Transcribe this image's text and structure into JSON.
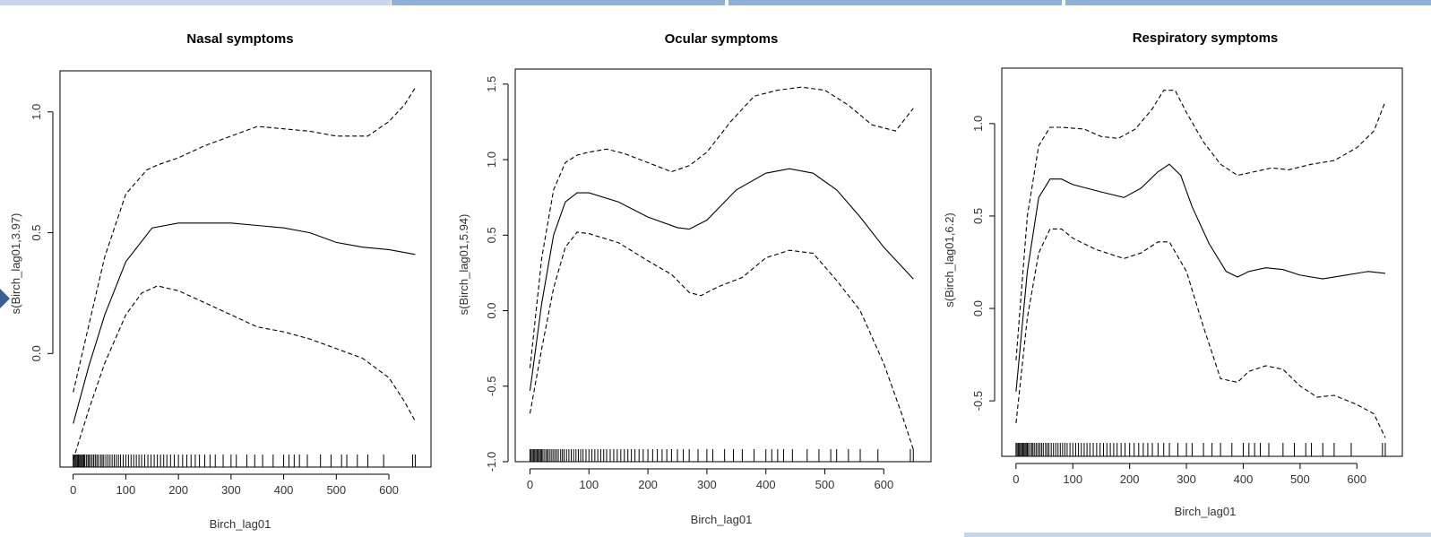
{
  "colors": {
    "slide_accent": "#8fb0db",
    "slide_accent_light": "#c7d6ec",
    "arrow": "#3a5f96",
    "line": "#000000"
  },
  "chart_data": [
    {
      "type": "line",
      "title": "Nasal symptoms",
      "xlabel": "Birch_lag01",
      "ylabel": "s(Birch_lag01,3.97)",
      "xlim": [
        -25,
        680
      ],
      "ylim": [
        -0.47,
        1.17
      ],
      "xticks": [
        0,
        100,
        200,
        300,
        400,
        500,
        600
      ],
      "yticks": [
        0.0,
        0.5,
        1.0
      ],
      "ytick_labels": [
        "0.0",
        "0.5",
        "1.0"
      ],
      "grid": false,
      "series": [
        {
          "role": "estimate",
          "style": "solid",
          "x": [
            0,
            30,
            60,
            100,
            150,
            200,
            250,
            300,
            350,
            400,
            450,
            500,
            550,
            600,
            650
          ],
          "y": [
            -0.29,
            -0.05,
            0.16,
            0.38,
            0.52,
            0.54,
            0.54,
            0.54,
            0.53,
            0.52,
            0.5,
            0.46,
            0.44,
            0.43,
            0.41
          ]
        },
        {
          "role": "upper",
          "style": "dashed",
          "x": [
            0,
            30,
            60,
            100,
            140,
            160,
            200,
            250,
            300,
            350,
            400,
            450,
            500,
            560,
            600,
            630,
            650
          ],
          "y": [
            -0.16,
            0.12,
            0.4,
            0.66,
            0.76,
            0.78,
            0.81,
            0.86,
            0.9,
            0.94,
            0.93,
            0.92,
            0.9,
            0.9,
            0.96,
            1.03,
            1.1
          ]
        },
        {
          "role": "lower",
          "style": "dashed",
          "x": [
            0,
            30,
            60,
            100,
            130,
            160,
            200,
            250,
            300,
            350,
            400,
            450,
            500,
            550,
            600,
            630,
            650
          ],
          "y": [
            -0.44,
            -0.23,
            -0.04,
            0.16,
            0.25,
            0.28,
            0.26,
            0.21,
            0.16,
            0.11,
            0.09,
            0.06,
            0.02,
            -0.02,
            -0.1,
            -0.2,
            -0.28
          ]
        }
      ],
      "rug": [
        0,
        2,
        4,
        6,
        8,
        10,
        12,
        14,
        16,
        18,
        20,
        22,
        25,
        28,
        30,
        33,
        36,
        39,
        42,
        45,
        48,
        52,
        55,
        58,
        62,
        66,
        70,
        74,
        78,
        82,
        86,
        90,
        95,
        100,
        105,
        110,
        115,
        120,
        125,
        130,
        136,
        142,
        148,
        154,
        160,
        166,
        172,
        178,
        185,
        192,
        200,
        208,
        216,
        224,
        232,
        240,
        250,
        260,
        270,
        285,
        300,
        310,
        330,
        345,
        360,
        380,
        400,
        410,
        420,
        430,
        445,
        470,
        490,
        510,
        520,
        540,
        560,
        590,
        645,
        650
      ]
    },
    {
      "type": "line",
      "title": "Ocular symptoms",
      "xlabel": "Birch_lag01",
      "ylabel": "s(Birch_lag01,5.94)",
      "xlim": [
        -25,
        680
      ],
      "ylim": [
        -1.0,
        1.6
      ],
      "xticks": [
        0,
        100,
        200,
        300,
        400,
        500,
        600
      ],
      "yticks": [
        -1.0,
        -0.5,
        0.0,
        0.5,
        1.0,
        1.5
      ],
      "ytick_labels": [
        "-1.0",
        "-0.5",
        "0.0",
        "0.5",
        "1.0",
        "1.5"
      ],
      "grid": false,
      "series": [
        {
          "role": "estimate",
          "style": "solid",
          "x": [
            0,
            20,
            40,
            60,
            80,
            100,
            150,
            200,
            250,
            270,
            300,
            350,
            400,
            440,
            480,
            520,
            560,
            600,
            650
          ],
          "y": [
            -0.53,
            0.05,
            0.5,
            0.72,
            0.78,
            0.78,
            0.72,
            0.62,
            0.55,
            0.54,
            0.6,
            0.8,
            0.91,
            0.94,
            0.91,
            0.8,
            0.62,
            0.42,
            0.21
          ]
        },
        {
          "role": "upper",
          "style": "dashed",
          "x": [
            0,
            20,
            40,
            60,
            80,
            100,
            130,
            160,
            200,
            240,
            270,
            300,
            340,
            380,
            420,
            460,
            500,
            540,
            580,
            620,
            650
          ],
          "y": [
            -0.38,
            0.35,
            0.8,
            0.98,
            1.03,
            1.05,
            1.07,
            1.04,
            0.98,
            0.92,
            0.96,
            1.05,
            1.25,
            1.42,
            1.46,
            1.48,
            1.46,
            1.36,
            1.23,
            1.19,
            1.34
          ]
        },
        {
          "role": "lower",
          "style": "dashed",
          "x": [
            0,
            20,
            40,
            60,
            80,
            100,
            150,
            200,
            240,
            270,
            290,
            320,
            360,
            400,
            440,
            480,
            520,
            560,
            600,
            630,
            650
          ],
          "y": [
            -0.68,
            -0.25,
            0.15,
            0.42,
            0.52,
            0.51,
            0.45,
            0.33,
            0.24,
            0.12,
            0.1,
            0.16,
            0.22,
            0.35,
            0.4,
            0.38,
            0.2,
            0.0,
            -0.35,
            -0.68,
            -0.92
          ]
        }
      ],
      "rug": [
        0,
        2,
        4,
        6,
        8,
        10,
        12,
        14,
        16,
        18,
        20,
        22,
        25,
        28,
        30,
        33,
        36,
        39,
        42,
        45,
        48,
        52,
        55,
        58,
        62,
        66,
        70,
        74,
        78,
        82,
        86,
        90,
        95,
        100,
        105,
        110,
        115,
        120,
        125,
        130,
        136,
        142,
        148,
        154,
        160,
        166,
        172,
        178,
        185,
        192,
        200,
        208,
        216,
        224,
        232,
        240,
        250,
        260,
        270,
        285,
        300,
        310,
        330,
        345,
        360,
        380,
        400,
        410,
        420,
        430,
        445,
        470,
        490,
        510,
        520,
        540,
        560,
        590,
        645,
        650
      ]
    },
    {
      "type": "line",
      "title": "Respiratory symptoms",
      "xlabel": "Birch_lag01",
      "ylabel": "s(Birch_lag01,6.2)",
      "xlim": [
        -25,
        680
      ],
      "ylim": [
        -0.8,
        1.3
      ],
      "xticks": [
        0,
        100,
        200,
        300,
        400,
        500,
        600
      ],
      "yticks": [
        -0.5,
        0.0,
        0.5,
        1.0
      ],
      "ytick_labels": [
        "-0.5",
        "0.0",
        "0.5",
        "1.0"
      ],
      "grid": false,
      "series": [
        {
          "role": "estimate",
          "style": "solid",
          "x": [
            0,
            20,
            40,
            60,
            80,
            100,
            150,
            190,
            220,
            250,
            270,
            290,
            310,
            340,
            370,
            390,
            410,
            440,
            470,
            500,
            540,
            580,
            620,
            650
          ],
          "y": [
            -0.45,
            0.2,
            0.6,
            0.7,
            0.7,
            0.67,
            0.63,
            0.6,
            0.65,
            0.74,
            0.78,
            0.72,
            0.55,
            0.35,
            0.2,
            0.17,
            0.2,
            0.22,
            0.21,
            0.18,
            0.16,
            0.18,
            0.2,
            0.19
          ]
        },
        {
          "role": "upper",
          "style": "dashed",
          "x": [
            0,
            20,
            40,
            60,
            80,
            120,
            150,
            180,
            210,
            240,
            260,
            280,
            300,
            330,
            360,
            390,
            420,
            450,
            480,
            520,
            560,
            600,
            630,
            650
          ],
          "y": [
            -0.28,
            0.5,
            0.88,
            0.98,
            0.98,
            0.97,
            0.93,
            0.92,
            0.97,
            1.08,
            1.18,
            1.18,
            1.06,
            0.9,
            0.78,
            0.72,
            0.74,
            0.76,
            0.75,
            0.78,
            0.8,
            0.87,
            0.96,
            1.12
          ]
        },
        {
          "role": "lower",
          "style": "dashed",
          "x": [
            0,
            20,
            40,
            60,
            80,
            100,
            140,
            190,
            220,
            250,
            270,
            300,
            330,
            360,
            390,
            410,
            440,
            470,
            500,
            530,
            560,
            600,
            630,
            650
          ],
          "y": [
            -0.62,
            -0.05,
            0.3,
            0.43,
            0.43,
            0.38,
            0.32,
            0.27,
            0.3,
            0.36,
            0.36,
            0.2,
            -0.1,
            -0.38,
            -0.4,
            -0.34,
            -0.31,
            -0.33,
            -0.42,
            -0.48,
            -0.47,
            -0.52,
            -0.57,
            -0.7
          ]
        }
      ],
      "rug": [
        0,
        2,
        4,
        6,
        8,
        10,
        12,
        14,
        16,
        18,
        20,
        22,
        25,
        28,
        30,
        33,
        36,
        39,
        42,
        45,
        48,
        52,
        55,
        58,
        62,
        66,
        70,
        74,
        78,
        82,
        86,
        90,
        95,
        100,
        105,
        110,
        115,
        120,
        125,
        130,
        136,
        142,
        148,
        154,
        160,
        166,
        172,
        178,
        185,
        192,
        200,
        208,
        216,
        224,
        232,
        240,
        250,
        260,
        270,
        285,
        300,
        310,
        330,
        345,
        360,
        380,
        400,
        410,
        420,
        430,
        445,
        470,
        490,
        510,
        520,
        540,
        560,
        590,
        645,
        650
      ]
    }
  ]
}
